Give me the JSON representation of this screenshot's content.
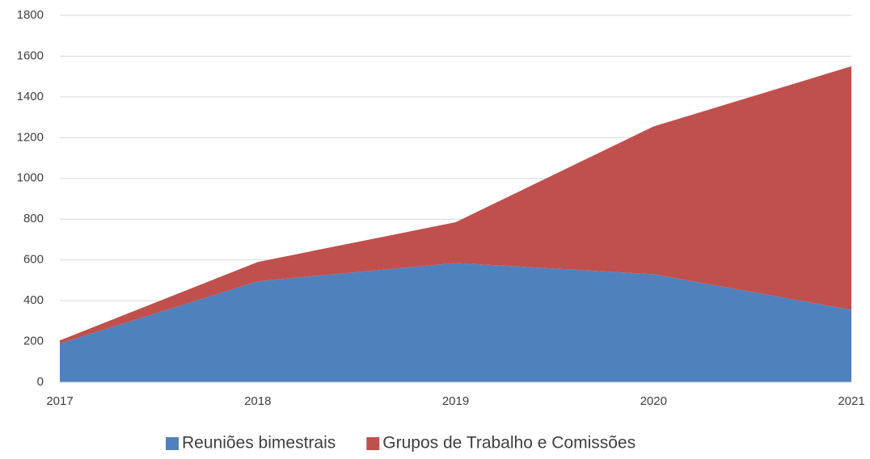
{
  "chart_data": {
    "type": "stacked_area",
    "categories": [
      "2017",
      "2018",
      "2019",
      "2020",
      "2021"
    ],
    "series": [
      {
        "name": "Reuniões bimestrais",
        "color": "#4f81bd",
        "values": [
          190,
          495,
          585,
          530,
          355
        ]
      },
      {
        "name": "Grupos de Trabalho e Comissões",
        "color": "#c0504d",
        "values": [
          15,
          95,
          200,
          725,
          1195
        ]
      }
    ],
    "ylim": [
      0,
      1800
    ],
    "yticks": [
      0,
      200,
      400,
      600,
      800,
      1000,
      1200,
      1400,
      1600,
      1800
    ],
    "grid": true,
    "legend": "bottom"
  }
}
